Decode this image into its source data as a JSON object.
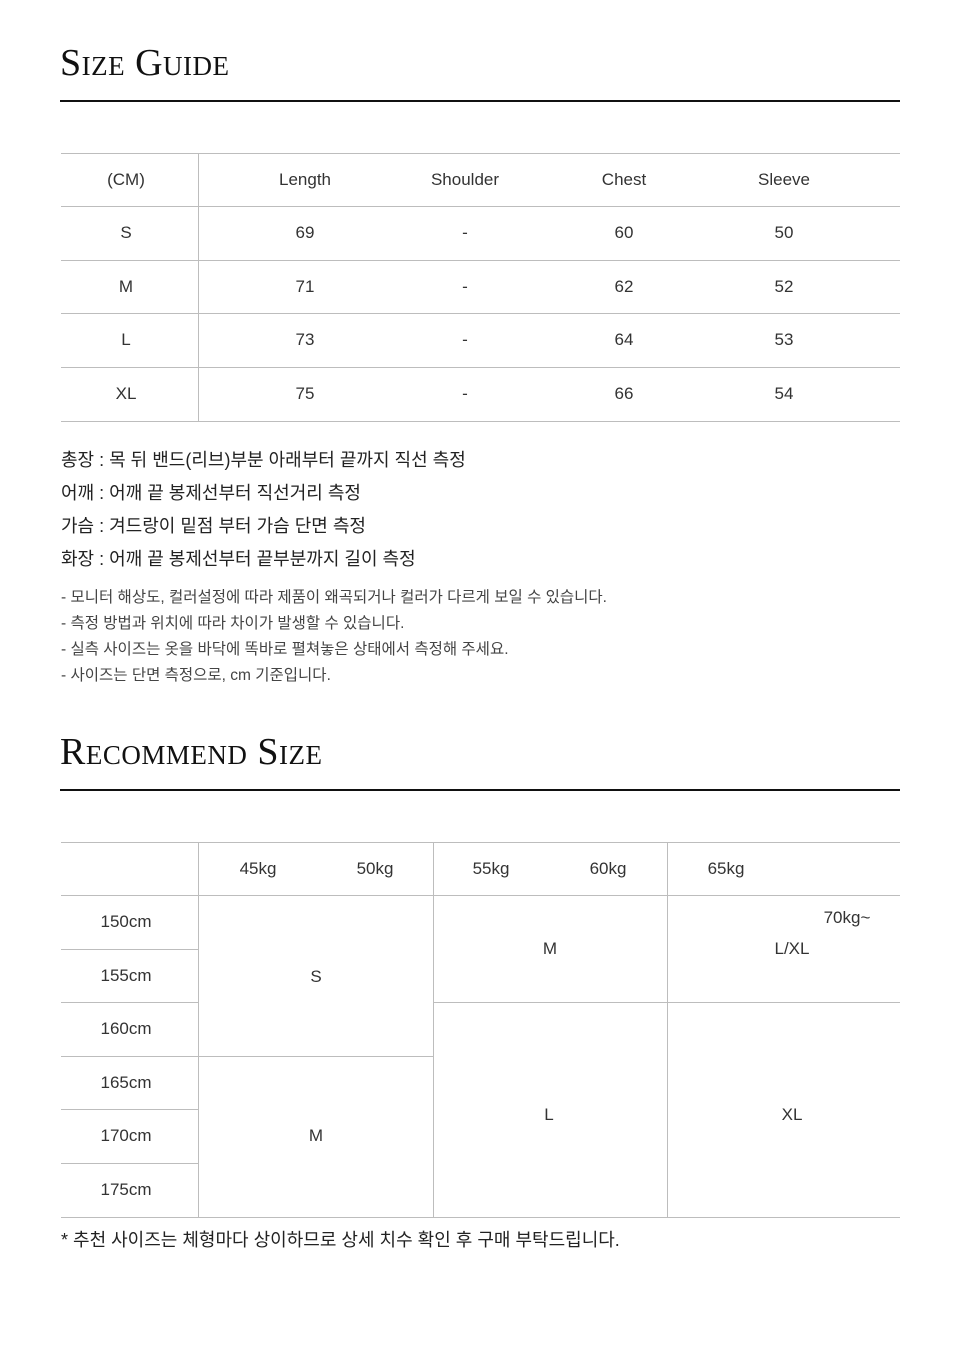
{
  "size_guide": {
    "title": "Size Guide",
    "headers": [
      "(CM)",
      "Length",
      "Shoulder",
      "Chest",
      "Sleeve"
    ],
    "rows": [
      [
        "S",
        "69",
        "-",
        "60",
        "50"
      ],
      [
        "M",
        "71",
        "-",
        "62",
        "52"
      ],
      [
        "L",
        "73",
        "-",
        "64",
        "53"
      ],
      [
        "XL",
        "75",
        "-",
        "66",
        "54"
      ]
    ],
    "measure_notes": [
      "총장 : 목 뒤 밴드(리브)부분 아래부터 끝까지 직선 측정",
      "어깨 : 어깨 끝 봉제선부터 직선거리 측정",
      "가슴 : 겨드랑이 밑점 부터 가슴 단면 측정",
      "화장 : 어깨 끝 봉제선부터 끝부분까지 길이 측정"
    ],
    "disclaimers": [
      "- 모니터 해상도, 컬러설정에 따라 제품이 왜곡되거나 컬러가 다르게 보일 수 있습니다.",
      "- 측정 방법과 위치에 따라 차이가 발생할 수 있습니다.",
      "- 실측 사이즈는 옷을 바닥에 똑바로 펼쳐놓은 상태에서 측정해 주세요.",
      "- 사이즈는 단면 측정으로, cm 기준입니다."
    ]
  },
  "recommend": {
    "title": "Recommend Size",
    "weights": [
      "45kg",
      "50kg",
      "55kg",
      "60kg",
      "65kg",
      "70kg~"
    ],
    "heights": [
      "150cm",
      "155cm",
      "160cm",
      "165cm",
      "170cm",
      "175cm"
    ],
    "cells": {
      "light_short": "S",
      "light_tall": "M",
      "mid_short": "M",
      "mid_tall": "L",
      "heavy_short": "L/XL",
      "heavy_tall": "XL"
    },
    "footnote": "* 추천 사이즈는 체형마다 상이하므로 상세 치수 확인 후 구매 부탁드립니다."
  }
}
